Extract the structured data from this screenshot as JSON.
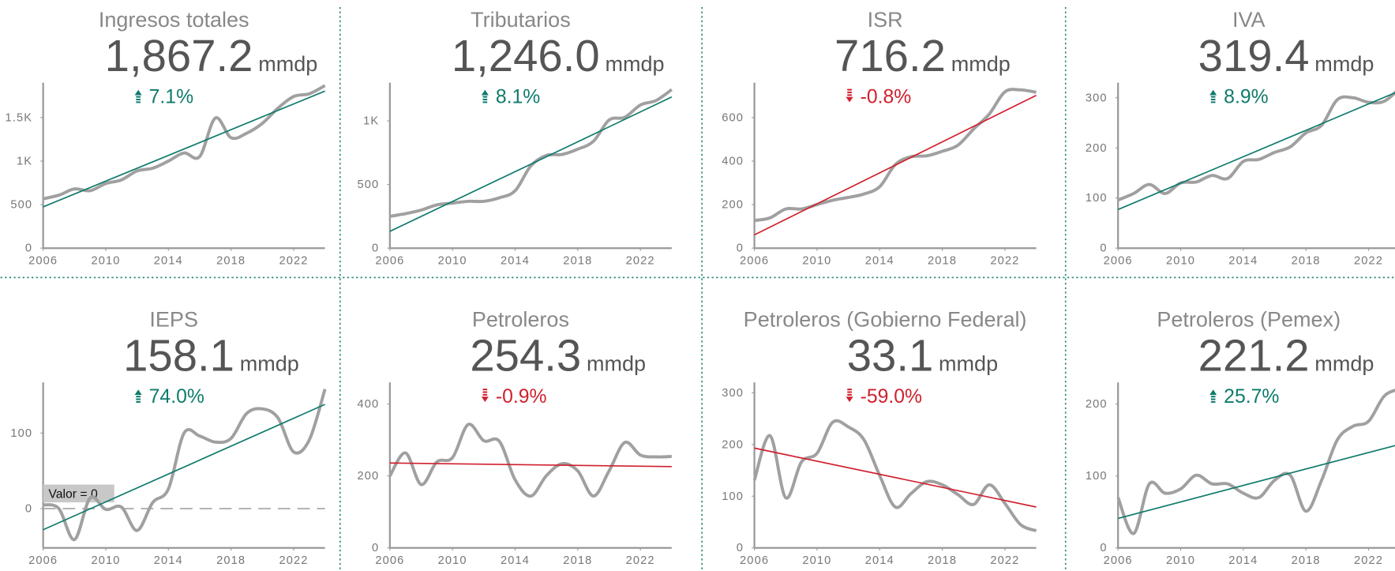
{
  "chart_data": [
    {
      "type": "line",
      "title": "Ingresos totales",
      "headline": "1,867.2",
      "unit": "mmdp",
      "change": "7.1%",
      "arrow": "up",
      "x": [
        2006,
        2007,
        2008,
        2009,
        2010,
        2011,
        2012,
        2013,
        2014,
        2015,
        2016,
        2017,
        2018,
        2019,
        2020,
        2021,
        2022,
        2023,
        2024
      ],
      "series": [
        {
          "color": "#a0a0a0",
          "values": [
            567,
            608,
            680,
            660,
            742,
            784,
            887,
            918,
            1000,
            1093,
            1052,
            1495,
            1268,
            1320,
            1433,
            1608,
            1742,
            1773,
            1867.2
          ]
        }
      ],
      "trend": {
        "x": [
          2006,
          2024
        ],
        "values": [
          474,
          1804
        ],
        "color": "#0f7b6c"
      },
      "xlim": [
        2006,
        2024
      ],
      "xticks": [
        2006,
        2010,
        2014,
        2018,
        2022
      ],
      "ylim": [
        0,
        1900
      ],
      "yticks": [
        0,
        500,
        {
          "value": 1000,
          "label": "1K"
        },
        {
          "value": 1500,
          "label": "1.5K"
        }
      ]
    },
    {
      "type": "line",
      "title": "Tributarios",
      "headline": "1,246.0",
      "unit": "mmdp",
      "change": "8.1%",
      "arrow": "up",
      "x": [
        2006,
        2007,
        2008,
        2009,
        2010,
        2011,
        2012,
        2013,
        2014,
        2015,
        2016,
        2017,
        2018,
        2019,
        2020,
        2021,
        2022,
        2023,
        2024
      ],
      "series": [
        {
          "color": "#a0a0a0",
          "values": [
            250,
            271,
            299,
            340,
            354,
            368,
            368,
            396,
            451,
            646,
            729,
            736,
            778,
            840,
            1007,
            1028,
            1125,
            1160,
            1246
          ]
        }
      ],
      "trend": {
        "x": [
          2006,
          2024
        ],
        "values": [
          132,
          1188
        ],
        "color": "#0f7b6c"
      },
      "xlim": [
        2006,
        2024
      ],
      "xticks": [
        2006,
        2010,
        2014,
        2018,
        2022
      ],
      "ylim": [
        0,
        1300
      ],
      "yticks": [
        0,
        500,
        {
          "value": 1000,
          "label": "1K"
        }
      ]
    },
    {
      "type": "line",
      "title": "ISR",
      "headline": "716.2",
      "unit": "mmdp",
      "change": "-0.8%",
      "arrow": "down",
      "x": [
        2006,
        2007,
        2008,
        2009,
        2010,
        2011,
        2012,
        2013,
        2014,
        2015,
        2016,
        2017,
        2018,
        2019,
        2020,
        2021,
        2022,
        2023,
        2024
      ],
      "series": [
        {
          "color": "#a0a0a0",
          "values": [
            127,
            139,
            180,
            180,
            200,
            220,
            233,
            249,
            282,
            384,
            420,
            424,
            445,
            473,
            547,
            616,
            718,
            727,
            716.2
          ]
        }
      ],
      "trend": {
        "x": [
          2006,
          2024
        ],
        "values": [
          61,
          702
        ],
        "color": "#d0202e"
      },
      "xlim": [
        2006,
        2024
      ],
      "xticks": [
        2006,
        2010,
        2014,
        2018,
        2022
      ],
      "ylim": [
        0,
        760
      ],
      "yticks": [
        0,
        200,
        400,
        600
      ]
    },
    {
      "type": "line",
      "title": "IVA",
      "headline": "319.4",
      "unit": "mmdp",
      "change": "8.9%",
      "arrow": "up",
      "x": [
        2006,
        2007,
        2008,
        2009,
        2010,
        2011,
        2012,
        2013,
        2014,
        2015,
        2016,
        2017,
        2018,
        2019,
        2020,
        2021,
        2022,
        2023,
        2024
      ],
      "series": [
        {
          "color": "#a0a0a0",
          "values": [
            96,
            109,
            127,
            109,
            130,
            132,
            145,
            139,
            173,
            177,
            191,
            202,
            230,
            245,
            296,
            300,
            291,
            293,
            319.4
          ]
        }
      ],
      "trend": {
        "x": [
          2006,
          2024
        ],
        "values": [
          77,
          314
        ],
        "color": "#0f7b6c"
      },
      "xlim": [
        2006,
        2024
      ],
      "xticks": [
        2006,
        2010,
        2014,
        2018,
        2022
      ],
      "ylim": [
        0,
        330
      ],
      "yticks": [
        0,
        100,
        200,
        300
      ]
    },
    {
      "type": "line",
      "title": "IEPS",
      "headline": "158.1",
      "unit": "mmdp",
      "change": "74.0%",
      "arrow": "up",
      "x": [
        2006,
        2007,
        2008,
        2009,
        2010,
        2011,
        2012,
        2013,
        2014,
        2015,
        2016,
        2017,
        2018,
        2019,
        2020,
        2021,
        2022,
        2023,
        2024
      ],
      "series": [
        {
          "color": "#a0a0a0",
          "values": [
            5,
            0,
            -41,
            14,
            -1,
            2,
            -29,
            8,
            26,
            100,
            96,
            88,
            93,
            126,
            132,
            120,
            75,
            91,
            158.1
          ]
        }
      ],
      "trend": {
        "x": [
          2006,
          2024
        ],
        "values": [
          -28,
          138
        ],
        "color": "#0f7b6c"
      },
      "annotation": {
        "text": "Valor = 0",
        "value": 0
      },
      "xlim": [
        2006,
        2024
      ],
      "xticks": [
        2006,
        2010,
        2014,
        2018,
        2022
      ],
      "ylim": [
        -52,
        167
      ],
      "yticks": [
        0,
        100
      ]
    },
    {
      "type": "line",
      "title": "Petroleros",
      "headline": "254.3",
      "unit": "mmdp",
      "change": "-0.9%",
      "arrow": "down",
      "x": [
        2006,
        2007,
        2008,
        2009,
        2010,
        2011,
        2012,
        2013,
        2014,
        2015,
        2016,
        2017,
        2018,
        2019,
        2020,
        2021,
        2022,
        2023,
        2024
      ],
      "series": [
        {
          "color": "#a0a0a0",
          "values": [
            200,
            264,
            176,
            239,
            251,
            343,
            298,
            296,
            189,
            144,
            201,
            234,
            214,
            144,
            214,
            293,
            258,
            253,
            254.3
          ]
        }
      ],
      "trend": {
        "x": [
          2006,
          2024
        ],
        "values": [
          236,
          226
        ],
        "color": "#d0202e"
      },
      "xlim": [
        2006,
        2024
      ],
      "xticks": [
        2006,
        2010,
        2014,
        2018,
        2022
      ],
      "ylim": [
        0,
        460
      ],
      "yticks": [
        0,
        200,
        400
      ]
    },
    {
      "type": "line",
      "title": "Petroleros (Gobierno Federal)",
      "headline": "33.1",
      "unit": "mmdp",
      "change": "-59.0%",
      "arrow": "down",
      "x": [
        2006,
        2007,
        2008,
        2009,
        2010,
        2011,
        2012,
        2013,
        2014,
        2015,
        2016,
        2017,
        2018,
        2019,
        2020,
        2021,
        2022,
        2023,
        2024
      ],
      "series": [
        {
          "color": "#a0a0a0",
          "values": [
            131,
            217,
            97,
            166,
            183,
            243,
            234,
            209,
            140,
            79,
            105,
            128,
            122,
            103,
            84,
            122,
            86,
            45,
            33.1
          ]
        }
      ],
      "trend": {
        "x": [
          2006,
          2024
        ],
        "values": [
          193,
          79
        ],
        "color": "#d0202e"
      },
      "xlim": [
        2006,
        2024
      ],
      "xticks": [
        2006,
        2010,
        2014,
        2018,
        2022
      ],
      "ylim": [
        0,
        320
      ],
      "yticks": [
        0,
        100,
        200,
        300
      ]
    },
    {
      "type": "line",
      "title": "Petroleros (Pemex)",
      "headline": "221.2",
      "unit": "mmdp",
      "change": "25.7%",
      "arrow": "up",
      "x": [
        2006,
        2007,
        2008,
        2009,
        2010,
        2011,
        2012,
        2013,
        2014,
        2015,
        2016,
        2017,
        2018,
        2019,
        2020,
        2021,
        2022,
        2023,
        2024
      ],
      "series": [
        {
          "color": "#a0a0a0",
          "values": [
            70,
            20,
            89,
            76,
            82,
            101,
            89,
            89,
            76,
            70,
            94,
            101,
            51,
            94,
            150,
            169,
            176,
            211,
            221.2
          ]
        }
      ],
      "trend": {
        "x": [
          2006,
          2024
        ],
        "values": [
          41,
          144
        ],
        "color": "#0f7b6c"
      },
      "xlim": [
        2006,
        2024
      ],
      "xticks": [
        2006,
        2010,
        2014,
        2018,
        2022
      ],
      "ylim": [
        0,
        230
      ],
      "yticks": [
        0,
        100,
        200
      ]
    }
  ]
}
